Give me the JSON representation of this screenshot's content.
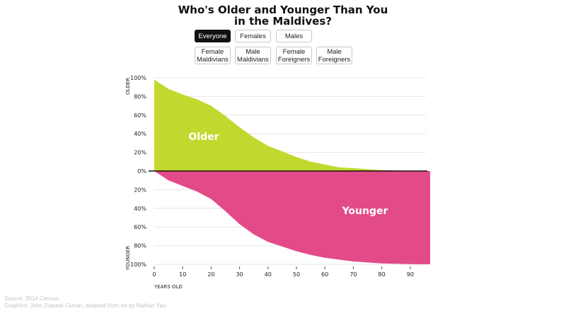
{
  "title": {
    "line1": "Who's Older and Younger Than You",
    "line2": "in the Maldives?"
  },
  "filters": {
    "row1": [
      {
        "label": "Everyone",
        "active": true
      },
      {
        "label": "Females",
        "active": false
      },
      {
        "label": "Males",
        "active": false
      }
    ],
    "row2": [
      {
        "line1": "Female",
        "line2": "Maldivians"
      },
      {
        "line1": "Male",
        "line2": "Maldivians"
      },
      {
        "line1": "Female",
        "line2": "Foreigners"
      },
      {
        "line1": "Male",
        "line2": "Foreigners"
      }
    ]
  },
  "source": {
    "line1": "Source: 2014 Census",
    "line2": "Graphics: John Zuwasti Curran, adapted from viz by Nathan Yau"
  },
  "chart_data": {
    "type": "area",
    "xlabel": "YEARS OLD",
    "ylabel_top": "OLDER",
    "ylabel_bottom": "YOUNGER",
    "area_labels": {
      "older": "Older",
      "younger": "Younger"
    },
    "colors": {
      "older": "#c2d82e",
      "younger": "#e24b87"
    },
    "xlim": [
      0,
      97
    ],
    "x_ticks": [
      0,
      10,
      20,
      30,
      40,
      50,
      60,
      70,
      80,
      90
    ],
    "y_ticks": [
      {
        "value": 100,
        "label": "100%"
      },
      {
        "value": 80,
        "label": "80%"
      },
      {
        "value": 60,
        "label": "60%"
      },
      {
        "value": 40,
        "label": "40%"
      },
      {
        "value": 20,
        "label": "20%"
      },
      {
        "value": 0,
        "label": "0%"
      },
      {
        "value": -20,
        "label": "20%"
      },
      {
        "value": -40,
        "label": "40%"
      },
      {
        "value": -60,
        "label": "60%"
      },
      {
        "value": -80,
        "label": "80%"
      },
      {
        "value": -100,
        "label": "100%"
      }
    ],
    "older_pct": {
      "x": [
        0,
        2,
        5,
        10,
        15,
        20,
        25,
        30,
        35,
        40,
        45,
        50,
        55,
        60,
        65,
        70,
        75,
        80,
        85,
        90,
        97
      ],
      "y": [
        98,
        94,
        88,
        82,
        77,
        70,
        59,
        47,
        36,
        27,
        21,
        15,
        10,
        7,
        4,
        3,
        2,
        1,
        0.5,
        0.2,
        0
      ]
    },
    "younger_pct": {
      "x": [
        0,
        2,
        5,
        10,
        15,
        20,
        25,
        30,
        35,
        40,
        45,
        50,
        55,
        60,
        65,
        70,
        75,
        80,
        85,
        90,
        97
      ],
      "y": [
        0,
        4,
        10,
        16,
        22,
        30,
        43,
        57,
        68,
        76,
        81,
        86,
        90,
        93,
        95,
        97,
        98,
        99,
        99.5,
        99.8,
        100
      ]
    }
  }
}
